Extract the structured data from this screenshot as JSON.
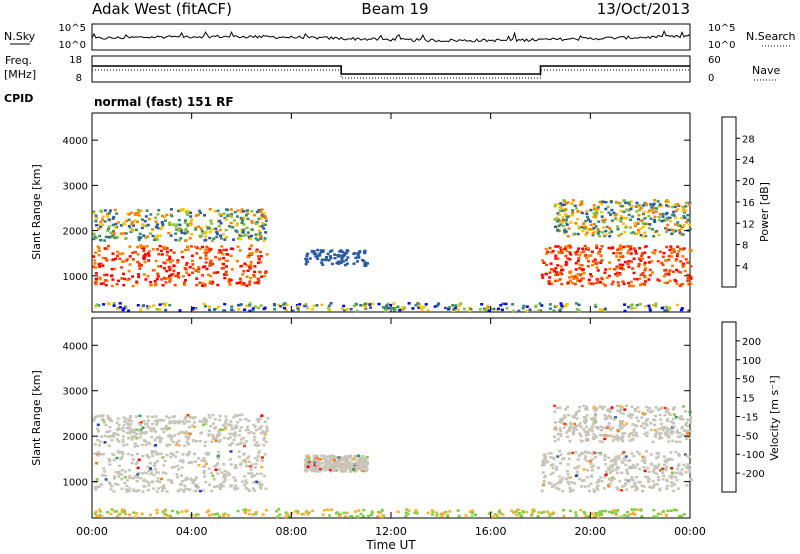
{
  "header": {
    "title": "Adak West (fitACF)",
    "beam": "Beam 19",
    "date": "13/Oct/2013"
  },
  "noise_panel": {
    "left_label": "N.Sky",
    "right_label": "N.Search",
    "left_ticks": [
      "10^5",
      "10^0"
    ],
    "right_ticks": [
      "10^5",
      "10^0"
    ]
  },
  "freq_panel": {
    "left_label_1": "Freq.",
    "left_label_2": "[MHz]",
    "right_label": "Nave",
    "left_ticks": [
      "18",
      "8"
    ],
    "right_ticks": [
      "60",
      "0"
    ],
    "freq_steps": [
      {
        "from": "00:00",
        "to": "10:00",
        "level": "high"
      },
      {
        "from": "10:00",
        "to": "18:00",
        "level": "low"
      },
      {
        "from": "18:00",
        "to": "24:00",
        "level": "high"
      }
    ]
  },
  "cpid": {
    "label": "CPID",
    "mode": "normal (fast) 151 RF"
  },
  "chart_data": [
    {
      "type": "heatmap",
      "title": "",
      "ylabel": "Slant Range [km]",
      "xlabel": "",
      "ylim": [
        200,
        4600
      ],
      "y_ticks": [
        "4000",
        "3000",
        "2000",
        "1000"
      ],
      "colorbar": {
        "label": "Power [dB]",
        "ticks": [
          "28",
          "24",
          "20",
          "16",
          "12",
          "8",
          "4"
        ],
        "colors": [
          "#ff0000",
          "#ff4000",
          "#ff8000",
          "#ffc000",
          "#88c040",
          "#3a8a6a",
          "#2a5aa0",
          "#0000ff"
        ]
      },
      "echo_regions": [
        {
          "t0": 0.0,
          "t1": 7.0,
          "r0": 800,
          "r1": 1700,
          "level": "strong"
        },
        {
          "t0": 0.0,
          "t1": 7.0,
          "r0": 1800,
          "r1": 2500,
          "level": "medium"
        },
        {
          "t0": 8.5,
          "t1": 11.0,
          "r0": 1250,
          "r1": 1600,
          "level": "weak"
        },
        {
          "t0": 18.0,
          "t1": 24.0,
          "r0": 800,
          "r1": 1700,
          "level": "strong"
        },
        {
          "t0": 18.5,
          "t1": 24.0,
          "r0": 1900,
          "r1": 2700,
          "level": "medium"
        },
        {
          "t0": 0.0,
          "t1": 24.0,
          "r0": 250,
          "r1": 420,
          "level": "ground"
        }
      ]
    },
    {
      "type": "heatmap",
      "title": "",
      "ylabel": "Slant Range [km]",
      "xlabel": "Time UT",
      "ylim": [
        200,
        4600
      ],
      "y_ticks": [
        "4000",
        "3000",
        "2000",
        "1000"
      ],
      "x_ticks": [
        "00:00",
        "04:00",
        "08:00",
        "12:00",
        "16:00",
        "20:00",
        "00:00"
      ],
      "colorbar": {
        "label": "Velocity [m s⁻¹]",
        "ticks": [
          "200",
          "100",
          "50",
          "15",
          "-15",
          "-50",
          "-100",
          "-200"
        ],
        "colors": [
          "#2040c0",
          "#3a6aa0",
          "#3a9a5a",
          "#7ed040",
          "#c8c4b8",
          "#ffb030",
          "#ff8000",
          "#ff4000",
          "#ff0000"
        ]
      },
      "echo_regions": [
        {
          "t0": 0.0,
          "t1": 7.0,
          "r0": 800,
          "r1": 1700,
          "level": "near-zero"
        },
        {
          "t0": 0.0,
          "t1": 7.0,
          "r0": 1800,
          "r1": 2500,
          "level": "near-zero"
        },
        {
          "t0": 8.5,
          "t1": 11.0,
          "r0": 1250,
          "r1": 1600,
          "level": "near-zero"
        },
        {
          "t0": 18.0,
          "t1": 24.0,
          "r0": 800,
          "r1": 1700,
          "level": "near-zero"
        },
        {
          "t0": 18.5,
          "t1": 24.0,
          "r0": 1900,
          "r1": 2700,
          "level": "near-zero"
        },
        {
          "t0": 0.0,
          "t1": 24.0,
          "r0": 250,
          "r1": 420,
          "level": "ground"
        }
      ]
    }
  ]
}
